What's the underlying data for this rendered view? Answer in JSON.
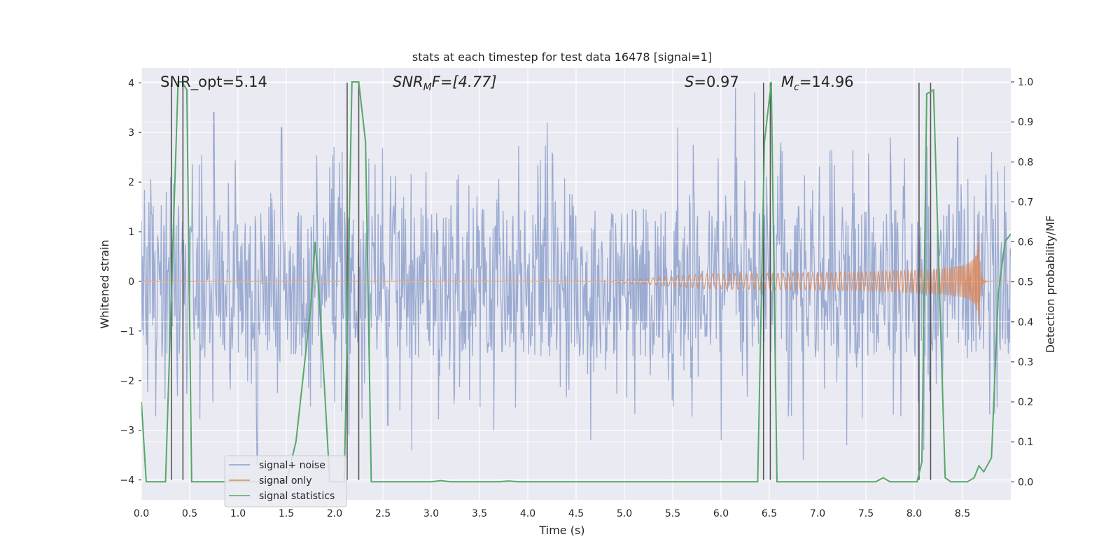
{
  "chart_data": {
    "type": "line",
    "title": "stats at each timestep for test data 16478 [signal=1]",
    "xlabel": "Time (s)",
    "ylabel": "Whitened strain",
    "y2label": "Detection probability/MF",
    "xlim": [
      0.0,
      9.0
    ],
    "ylim": [
      -4.4,
      4.3
    ],
    "y2lim": [
      -0.045,
      1.035
    ],
    "x_ticks": [
      "0.0",
      "0.5",
      "1.0",
      "1.5",
      "2.0",
      "2.5",
      "3.0",
      "3.5",
      "4.0",
      "4.5",
      "5.0",
      "5.5",
      "6.0",
      "6.5",
      "7.0",
      "7.5",
      "8.0",
      "8.5"
    ],
    "y_ticks": [
      "−4",
      "−3",
      "−2",
      "−1",
      "0",
      "1",
      "2",
      "3",
      "4"
    ],
    "y2_ticks": [
      "0.0",
      "0.1",
      "0.2",
      "0.3",
      "0.4",
      "0.5",
      "0.6",
      "0.7",
      "0.8",
      "0.9",
      "1.0"
    ],
    "grid": true,
    "legend_position": "lower-left",
    "annotations": {
      "snr_opt": "SNR_opt=5.14",
      "snr_mf_prefix": "SNR",
      "snr_mf_sub": "M",
      "snr_mf_suffix": "F=[4.77]",
      "s_prefix": "S",
      "s_suffix": "=0.97",
      "mc_prefix": "M",
      "mc_sub": "c",
      "mc_suffix": "=14.96"
    },
    "series": [
      {
        "name": "signal+ noise",
        "color": "#8da0cb",
        "description": "whitened noisy strain, roughly within [-1.6, 1.6] with spikes to about +3.9 / -3.7",
        "band": [
          -1.55,
          1.55
        ],
        "spike_peaks": [
          [
            0.3,
            2.1
          ],
          [
            0.75,
            3.4
          ],
          [
            1.2,
            -3.7
          ],
          [
            1.45,
            3.1
          ],
          [
            2.15,
            -3.1
          ],
          [
            2.55,
            -2.9
          ],
          [
            2.8,
            -3.4
          ],
          [
            3.65,
            -3.0
          ],
          [
            4.2,
            3.2
          ],
          [
            4.65,
            -3.2
          ],
          [
            5.55,
            3.1
          ],
          [
            6.0,
            -3.2
          ],
          [
            6.15,
            3.9
          ],
          [
            6.35,
            3.8
          ],
          [
            6.85,
            -3.6
          ],
          [
            7.3,
            -3.3
          ],
          [
            7.75,
            2.9
          ],
          [
            8.1,
            -3.4
          ],
          [
            8.45,
            2.9
          ]
        ]
      },
      {
        "name": "signal only",
        "color": "#dd8452",
        "description": "chirp growing in amplitude toward merger",
        "chirp_start": 4.8,
        "chirp_peak_time": 8.67,
        "chirp_peak_amplitude": 0.95
      },
      {
        "name": "signal statistics",
        "color": "#55a868",
        "x": [
          0.0,
          0.05,
          0.25,
          0.32,
          0.38,
          0.42,
          0.47,
          0.52,
          0.6,
          1.0,
          1.5,
          1.6,
          1.75,
          1.8,
          1.85,
          1.95,
          2.05,
          2.1,
          2.18,
          2.25,
          2.32,
          2.38,
          2.5,
          3.0,
          3.1,
          3.2,
          3.7,
          3.8,
          3.9,
          5.0,
          6.0,
          6.38,
          6.45,
          6.52,
          6.58,
          6.65,
          7.0,
          7.6,
          7.68,
          7.75,
          8.03,
          8.08,
          8.13,
          8.2,
          8.32,
          8.38,
          8.55,
          8.62,
          8.67,
          8.72,
          8.8,
          8.87,
          8.94,
          9.0
        ],
        "values": [
          0.2,
          0.0,
          0.0,
          0.55,
          1.0,
          1.0,
          0.98,
          0.0,
          0.0,
          0.0,
          0.0,
          0.1,
          0.43,
          0.6,
          0.43,
          0.0,
          0.0,
          0.0,
          1.0,
          1.0,
          0.85,
          0.0,
          0.0,
          0.0,
          0.003,
          0.0,
          0.0,
          0.002,
          0.0,
          0.0,
          0.0,
          0.0,
          0.85,
          1.0,
          0.0,
          0.0,
          0.0,
          0.0,
          0.01,
          0.0,
          0.0,
          0.05,
          0.97,
          0.98,
          0.01,
          0.0,
          0.0,
          0.01,
          0.04,
          0.025,
          0.06,
          0.47,
          0.6,
          0.62
        ]
      }
    ],
    "vertical_markers": [
      0.31,
      0.43,
      2.13,
      2.25,
      6.44,
      6.51,
      8.05,
      8.17
    ]
  }
}
